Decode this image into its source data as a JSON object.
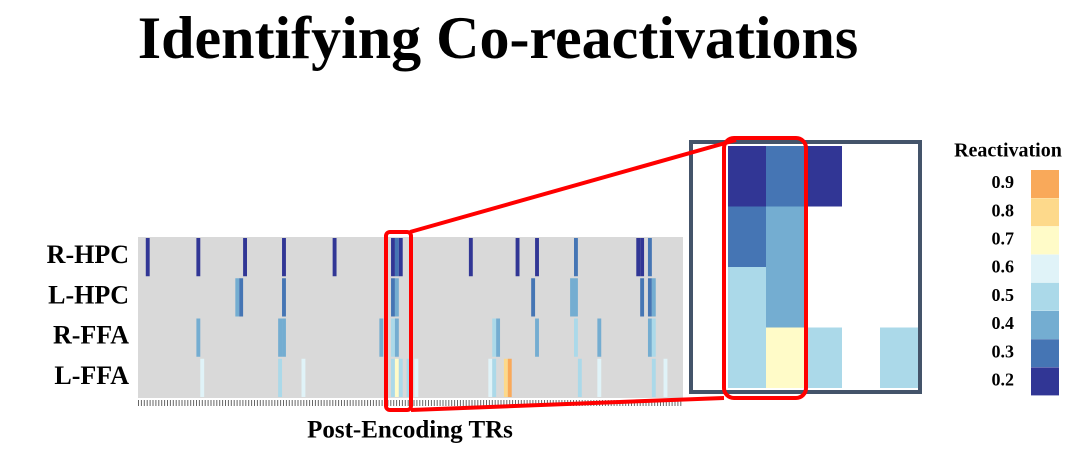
{
  "chart_data": {
    "type": "heatmap",
    "title": "Identifying Co-reactivations",
    "x_label": "Post-Encoding TRs",
    "xlim": [
      0,
      140
    ],
    "zoom_xlim": [
      65,
      70
    ],
    "series": [
      {
        "name": "R-HPC",
        "cells": [
          {
            "x": 2,
            "value": 0.2
          },
          {
            "x": 15,
            "value": 0.2
          },
          {
            "x": 27,
            "value": 0.2
          },
          {
            "x": 37,
            "value": 0.2
          },
          {
            "x": 50,
            "value": 0.2
          },
          {
            "x": 65,
            "value": 0.2
          },
          {
            "x": 66,
            "value": 0.3
          },
          {
            "x": 67,
            "value": 0.2
          },
          {
            "x": 85,
            "value": 0.2
          },
          {
            "x": 97,
            "value": 0.2
          },
          {
            "x": 102,
            "value": 0.2
          },
          {
            "x": 112,
            "value": 0.3
          },
          {
            "x": 128,
            "value": 0.2
          },
          {
            "x": 129,
            "value": 0.2
          },
          {
            "x": 131,
            "value": 0.3
          }
        ]
      },
      {
        "name": "L-HPC",
        "cells": [
          {
            "x": 25,
            "value": 0.4
          },
          {
            "x": 26,
            "value": 0.3
          },
          {
            "x": 37,
            "value": 0.3
          },
          {
            "x": 65,
            "value": 0.3
          },
          {
            "x": 66,
            "value": 0.4
          },
          {
            "x": 101,
            "value": 0.3
          },
          {
            "x": 111,
            "value": 0.4
          },
          {
            "x": 112,
            "value": 0.4
          },
          {
            "x": 129,
            "value": 0.3
          },
          {
            "x": 131,
            "value": 0.3
          },
          {
            "x": 132,
            "value": 0.4
          }
        ]
      },
      {
        "name": "R-FFA",
        "cells": [
          {
            "x": 15,
            "value": 0.4
          },
          {
            "x": 36,
            "value": 0.4
          },
          {
            "x": 37,
            "value": 0.4
          },
          {
            "x": 62,
            "value": 0.4
          },
          {
            "x": 65,
            "value": 0.5
          },
          {
            "x": 66,
            "value": 0.4
          },
          {
            "x": 91,
            "value": 0.5
          },
          {
            "x": 92,
            "value": 0.4
          },
          {
            "x": 102,
            "value": 0.4
          },
          {
            "x": 112,
            "value": 0.5
          },
          {
            "x": 118,
            "value": 0.4
          },
          {
            "x": 131,
            "value": 0.4
          },
          {
            "x": 132,
            "value": 0.5
          }
        ]
      },
      {
        "name": "L-FFA",
        "cells": [
          {
            "x": 16,
            "value": 0.6
          },
          {
            "x": 36,
            "value": 0.5
          },
          {
            "x": 42,
            "value": 0.6
          },
          {
            "x": 65,
            "value": 0.5
          },
          {
            "x": 66,
            "value": 0.7
          },
          {
            "x": 67,
            "value": 0.5
          },
          {
            "x": 69,
            "value": 0.5
          },
          {
            "x": 71,
            "value": 0.6
          },
          {
            "x": 90,
            "value": 0.6
          },
          {
            "x": 91,
            "value": 0.5
          },
          {
            "x": 94,
            "value": 0.8
          },
          {
            "x": 95,
            "value": 0.9
          },
          {
            "x": 113,
            "value": 0.5
          },
          {
            "x": 118,
            "value": 0.6
          },
          {
            "x": 132,
            "value": 0.5
          },
          {
            "x": 135,
            "value": 0.6
          }
        ]
      }
    ],
    "legend": {
      "title": "Reactivation",
      "levels": [
        0.9,
        0.8,
        0.7,
        0.6,
        0.5,
        0.4,
        0.3,
        0.2
      ],
      "colors": [
        "#f9a95a",
        "#fdd98b",
        "#fffbc8",
        "#e0f3f8",
        "#abd9e9",
        "#74add1",
        "#4575b4",
        "#313695"
      ]
    }
  }
}
